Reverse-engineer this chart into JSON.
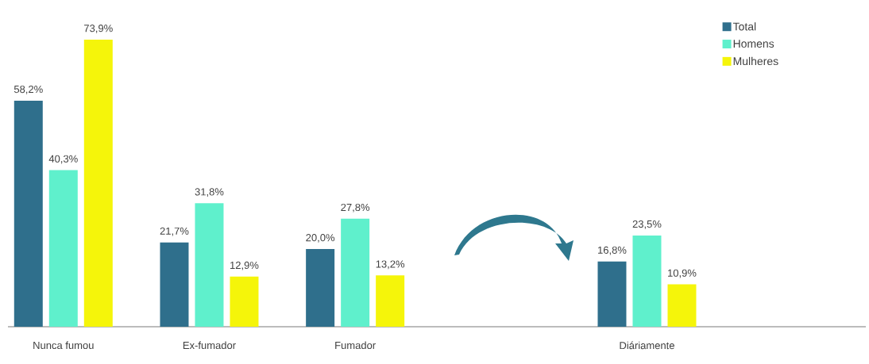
{
  "chart_data": {
    "type": "bar",
    "categories": [
      "Nunca fumou",
      "Ex-fumador",
      "Fumador",
      null,
      "Diáriamente",
      null
    ],
    "series": [
      {
        "name": "Total",
        "color": "#2f6f8c",
        "values": [
          58.2,
          21.7,
          20.0,
          null,
          16.8,
          null
        ],
        "value_labels": [
          "58,2%",
          "21,7%",
          "20,0%",
          null,
          "16,8%",
          null
        ]
      },
      {
        "name": "Homens",
        "color": "#5ff0cc",
        "values": [
          40.3,
          31.8,
          27.8,
          null,
          23.5,
          null
        ],
        "value_labels": [
          "40,3%",
          "31,8%",
          "27,8%",
          null,
          "23,5%",
          null
        ]
      },
      {
        "name": "Mulheres",
        "color": "#f5f50a",
        "values": [
          73.9,
          12.9,
          13.2,
          null,
          10.9,
          null
        ],
        "value_labels": [
          "73,9%",
          "12,9%",
          "13,2%",
          null,
          "10,9%",
          null
        ]
      }
    ],
    "legend": "top right"
  }
}
